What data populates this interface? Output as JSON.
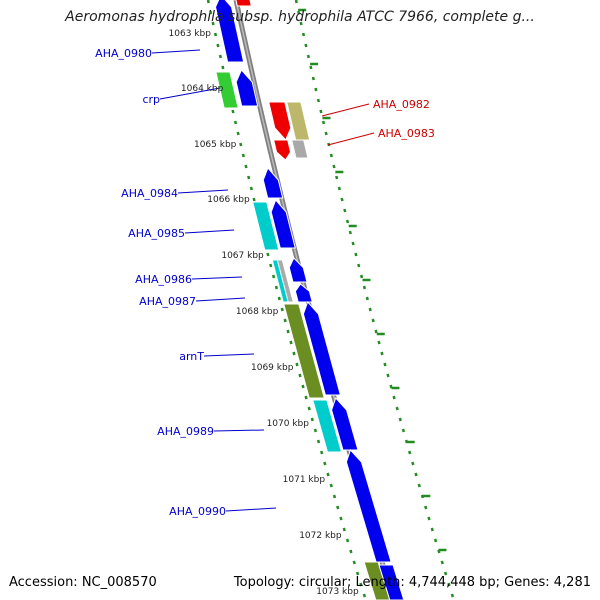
{
  "title": "Aeromonas hydrophila subsp. hydrophila ATCC 7966, complete g...",
  "accession": "Accession: NC_008570",
  "topology": "Topology: circular; Length: 4,744,448 bp; Genes: 4,281",
  "colors": {
    "forward": "#0000ee",
    "reverse": "#ee0000",
    "cyan": "#00cccc",
    "olive": "#6b8e23",
    "green": "#33cc33",
    "tan": "#bdb76b",
    "gray": "#a9a9a9",
    "backbone": "#808080",
    "tick": "#228b22",
    "label_forward": "#0000cc",
    "label_reverse": "#cc0000"
  },
  "kbp_ticks": [
    "1063 kbp",
    "1064 kbp",
    "1065 kbp",
    "1066 kbp",
    "1067 kbp",
    "1068 kbp",
    "1069 kbp",
    "1070 kbp",
    "1071 kbp",
    "1072 kbp",
    "1073 kbp"
  ],
  "gene_labels": {
    "forward": [
      "AHA_0980",
      "crp",
      "AHA_0984",
      "AHA_0985",
      "AHA_0986",
      "AHA_0987",
      "arnT",
      "AHA_0989",
      "AHA_0990"
    ],
    "reverse": [
      "AHA_0982",
      "AHA_0983"
    ]
  }
}
